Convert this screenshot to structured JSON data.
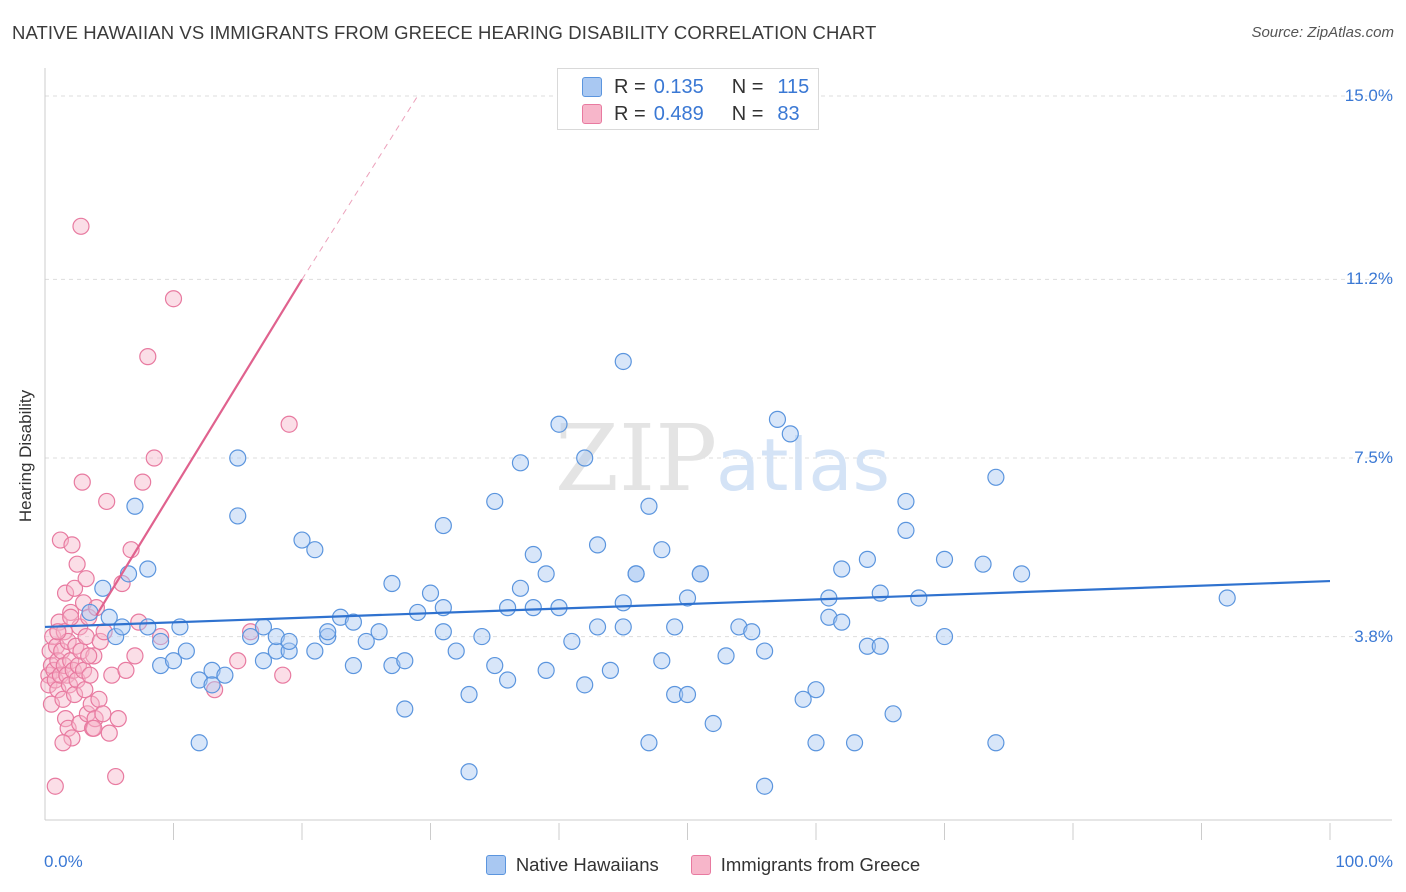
{
  "header": {
    "title": "NATIVE HAWAIIAN VS IMMIGRANTS FROM GREECE HEARING DISABILITY CORRELATION CHART",
    "source": "Source: ZipAtlas.com"
  },
  "watermark": {
    "zip": "ZIP",
    "atlas": "atlas"
  },
  "legend_top": {
    "rows": [
      {
        "r_label": "R =",
        "r_value": "0.135",
        "n_label": "N =",
        "n_value": "115",
        "color": "#a9c8f2"
      },
      {
        "r_label": "R =",
        "r_value": "0.489",
        "n_label": "N =",
        "n_value": "83",
        "color": "#f7b6ca"
      }
    ]
  },
  "legend_bottom": {
    "items": [
      {
        "label": "Native Hawaiians",
        "color": "#a9c8f2"
      },
      {
        "label": "Immigrants from Greece",
        "color": "#f7b6ca"
      }
    ]
  },
  "colors": {
    "blue_fill": "#a9c8f2",
    "blue_stroke": "#5b95de",
    "blue_line": "#2f72cf",
    "pink_fill": "#f7b6ca",
    "pink_stroke": "#e87aa0",
    "pink_line": "#e0628e",
    "grid": "#dddddd",
    "axis_text": "#3a78d4"
  },
  "chart_data": {
    "type": "scatter",
    "title": "NATIVE HAWAIIAN VS IMMIGRANTS FROM GREECE HEARING DISABILITY CORRELATION CHART",
    "xlabel": "",
    "ylabel": "Hearing Disability",
    "xlim": [
      0,
      100
    ],
    "ylim": [
      0.0,
      15.0
    ],
    "y_ticks": [
      {
        "value": 3.8,
        "label": "3.8%"
      },
      {
        "value": 7.5,
        "label": "7.5%"
      },
      {
        "value": 11.2,
        "label": "11.2%"
      },
      {
        "value": 15.0,
        "label": "15.0%"
      }
    ],
    "x_ticks": [
      {
        "value": 0,
        "label": "0.0%"
      },
      {
        "value": 100,
        "label": "100.0%"
      }
    ],
    "series": [
      {
        "name": "Native Hawaiians",
        "R": 0.135,
        "N": 115,
        "trend": {
          "x0": 0,
          "y0": 4.0,
          "x1": 100,
          "y1": 4.95
        },
        "points": [
          [
            3.5,
            4.3
          ],
          [
            4.5,
            4.8
          ],
          [
            5,
            4.2
          ],
          [
            5.5,
            3.8
          ],
          [
            6,
            4.0
          ],
          [
            6.5,
            5.1
          ],
          [
            7,
            6.5
          ],
          [
            8,
            5.2
          ],
          [
            8,
            4.0
          ],
          [
            9,
            3.7
          ],
          [
            9,
            3.2
          ],
          [
            10,
            3.3
          ],
          [
            10.5,
            4.0
          ],
          [
            11,
            3.5
          ],
          [
            12,
            1.6
          ],
          [
            12,
            2.9
          ],
          [
            13,
            3.1
          ],
          [
            13,
            2.8
          ],
          [
            14,
            3.0
          ],
          [
            15,
            6.3
          ],
          [
            15,
            7.5
          ],
          [
            16,
            3.8
          ],
          [
            17,
            4.0
          ],
          [
            17,
            3.3
          ],
          [
            18,
            3.5
          ],
          [
            18,
            3.8
          ],
          [
            19,
            3.5
          ],
          [
            19,
            3.7
          ],
          [
            20,
            5.8
          ],
          [
            21,
            5.6
          ],
          [
            21,
            3.5
          ],
          [
            22,
            3.8
          ],
          [
            22,
            3.9
          ],
          [
            23,
            4.2
          ],
          [
            24,
            4.1
          ],
          [
            24,
            3.2
          ],
          [
            25,
            3.7
          ],
          [
            26,
            3.9
          ],
          [
            27,
            4.9
          ],
          [
            27,
            3.2
          ],
          [
            28,
            3.3
          ],
          [
            28,
            2.3
          ],
          [
            29,
            4.3
          ],
          [
            30,
            4.7
          ],
          [
            31,
            4.4
          ],
          [
            31,
            6.1
          ],
          [
            31,
            3.9
          ],
          [
            32,
            3.5
          ],
          [
            33,
            1.0
          ],
          [
            33,
            2.6
          ],
          [
            34,
            3.8
          ],
          [
            35,
            3.2
          ],
          [
            35,
            6.6
          ],
          [
            36,
            4.4
          ],
          [
            36,
            2.9
          ],
          [
            37,
            4.8
          ],
          [
            37,
            7.4
          ],
          [
            38,
            5.5
          ],
          [
            38,
            4.4
          ],
          [
            39,
            5.1
          ],
          [
            39,
            3.1
          ],
          [
            40,
            8.2
          ],
          [
            40,
            4.4
          ],
          [
            41,
            3.7
          ],
          [
            42,
            7.5
          ],
          [
            42,
            2.8
          ],
          [
            43,
            5.7
          ],
          [
            43,
            4.0
          ],
          [
            44,
            3.1
          ],
          [
            45,
            9.5
          ],
          [
            45,
            4.0
          ],
          [
            45,
            4.5
          ],
          [
            46,
            5.1
          ],
          [
            46,
            5.1
          ],
          [
            47,
            6.5
          ],
          [
            47,
            1.6
          ],
          [
            48,
            5.6
          ],
          [
            48,
            3.3
          ],
          [
            49,
            4.0
          ],
          [
            49,
            2.6
          ],
          [
            50,
            2.6
          ],
          [
            50,
            4.6
          ],
          [
            51,
            5.1
          ],
          [
            51,
            5.1
          ],
          [
            52,
            2.0
          ],
          [
            53,
            3.4
          ],
          [
            54,
            4.0
          ],
          [
            55,
            3.9
          ],
          [
            56,
            0.7
          ],
          [
            56,
            3.5
          ],
          [
            57,
            8.3
          ],
          [
            58,
            8.0
          ],
          [
            59,
            2.5
          ],
          [
            60,
            1.6
          ],
          [
            60,
            2.7
          ],
          [
            61,
            4.6
          ],
          [
            61,
            4.2
          ],
          [
            62,
            5.2
          ],
          [
            62,
            4.1
          ],
          [
            63,
            1.6
          ],
          [
            64,
            5.4
          ],
          [
            64,
            3.6
          ],
          [
            65,
            4.7
          ],
          [
            65,
            3.6
          ],
          [
            66,
            2.2
          ],
          [
            67,
            6.6
          ],
          [
            67,
            6.0
          ],
          [
            68,
            4.6
          ],
          [
            70,
            5.4
          ],
          [
            70,
            3.8
          ],
          [
            73,
            5.3
          ],
          [
            74,
            1.6
          ],
          [
            74,
            7.1
          ],
          [
            76,
            5.1
          ],
          [
            92,
            4.6
          ]
        ]
      },
      {
        "name": "Immigrants from Greece",
        "R": 0.489,
        "N": 83,
        "trend": {
          "x0": 0,
          "y0": 2.5,
          "x1": 20,
          "y1": 11.2
        },
        "trend_dashed_to": {
          "x": 29,
          "y": 15.0
        },
        "points": [
          [
            0.3,
            3.0
          ],
          [
            0.3,
            2.8
          ],
          [
            0.4,
            3.5
          ],
          [
            0.5,
            3.2
          ],
          [
            0.5,
            2.4
          ],
          [
            0.6,
            3.8
          ],
          [
            0.7,
            3.1
          ],
          [
            0.8,
            2.9
          ],
          [
            0.9,
            3.6
          ],
          [
            1.0,
            3.3
          ],
          [
            1.0,
            2.7
          ],
          [
            1.1,
            4.1
          ],
          [
            1.2,
            3.0
          ],
          [
            1.2,
            5.8
          ],
          [
            1.3,
            3.5
          ],
          [
            1.4,
            2.5
          ],
          [
            1.5,
            3.9
          ],
          [
            1.5,
            3.2
          ],
          [
            1.6,
            4.7
          ],
          [
            1.6,
            2.1
          ],
          [
            1.7,
            3.0
          ],
          [
            1.8,
            3.7
          ],
          [
            1.8,
            1.9
          ],
          [
            1.9,
            2.8
          ],
          [
            2.0,
            4.3
          ],
          [
            2.0,
            3.3
          ],
          [
            2.1,
            5.7
          ],
          [
            2.1,
            1.7
          ],
          [
            2.2,
            3.1
          ],
          [
            2.3,
            4.8
          ],
          [
            2.3,
            2.6
          ],
          [
            2.4,
            3.6
          ],
          [
            2.5,
            5.3
          ],
          [
            2.5,
            2.9
          ],
          [
            2.6,
            3.2
          ],
          [
            2.7,
            4.0
          ],
          [
            2.7,
            2.0
          ],
          [
            2.8,
            12.3
          ],
          [
            2.8,
            3.5
          ],
          [
            2.9,
            7.0
          ],
          [
            3.0,
            3.1
          ],
          [
            3.0,
            4.5
          ],
          [
            3.1,
            2.7
          ],
          [
            3.2,
            3.8
          ],
          [
            3.2,
            5.0
          ],
          [
            3.3,
            2.2
          ],
          [
            3.4,
            4.2
          ],
          [
            3.5,
            3.0
          ],
          [
            3.6,
            2.4
          ],
          [
            3.7,
            1.9
          ],
          [
            3.8,
            3.4
          ],
          [
            3.9,
            2.1
          ],
          [
            4.0,
            4.4
          ],
          [
            4.2,
            2.5
          ],
          [
            4.3,
            3.7
          ],
          [
            4.5,
            2.2
          ],
          [
            4.6,
            3.9
          ],
          [
            4.8,
            6.6
          ],
          [
            5.0,
            1.8
          ],
          [
            5.2,
            3.0
          ],
          [
            5.5,
            0.9
          ],
          [
            5.7,
            2.1
          ],
          [
            6.0,
            4.9
          ],
          [
            6.3,
            3.1
          ],
          [
            6.7,
            5.6
          ],
          [
            7.0,
            3.4
          ],
          [
            7.3,
            4.1
          ],
          [
            7.6,
            7.0
          ],
          [
            8.0,
            9.6
          ],
          [
            8.5,
            7.5
          ],
          [
            9.0,
            3.8
          ],
          [
            10.0,
            10.8
          ],
          [
            13.2,
            2.7
          ],
          [
            15.0,
            3.3
          ],
          [
            16.0,
            3.9
          ],
          [
            18.5,
            3.0
          ],
          [
            0.8,
            0.7
          ],
          [
            1.4,
            1.6
          ],
          [
            2.0,
            4.2
          ],
          [
            3.4,
            3.4
          ],
          [
            1.0,
            3.9
          ],
          [
            3.8,
            1.9
          ],
          [
            19.0,
            8.2
          ]
        ]
      }
    ]
  }
}
